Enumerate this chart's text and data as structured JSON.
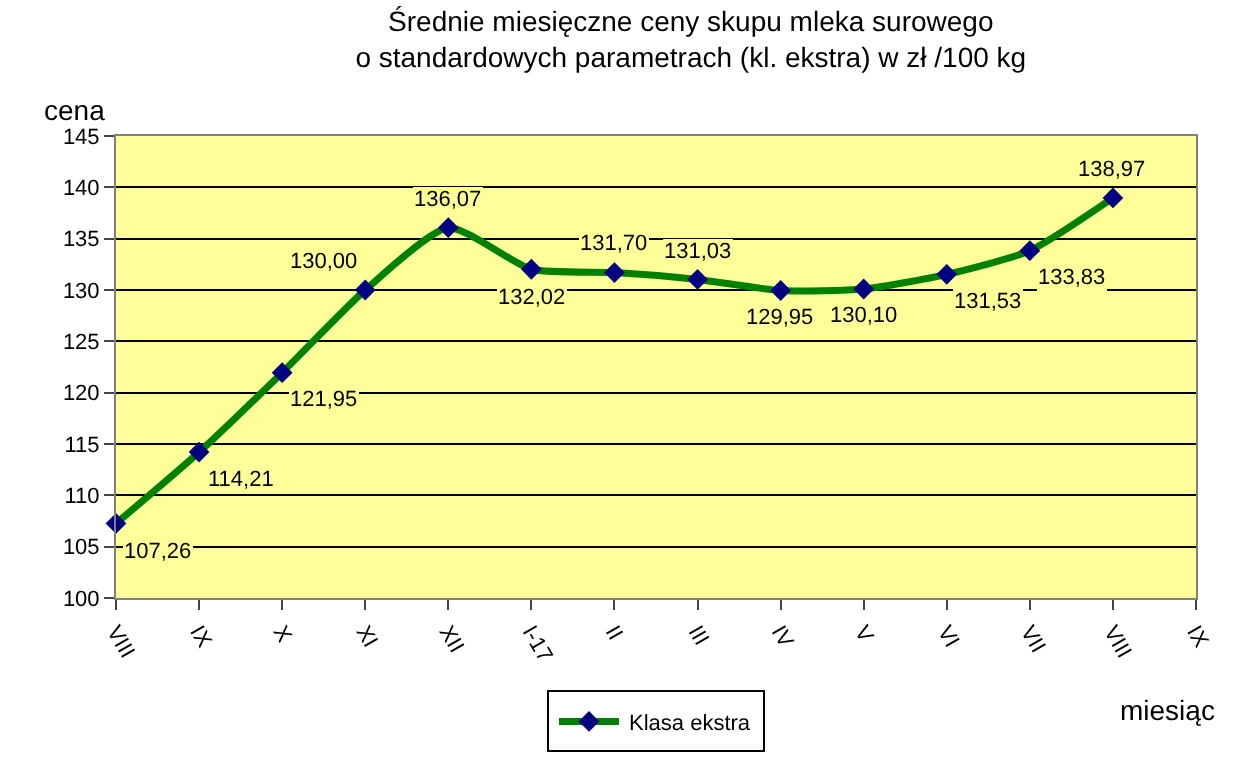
{
  "chart_data": {
    "type": "line",
    "title": "Średnie miesięczne ceny skupu mleka surowego\no standardowych parametrach (kl. ekstra) w zł /100 kg",
    "xlabel": "miesiąc",
    "ylabel": "cena",
    "categories": [
      "VIII",
      "IX",
      "X",
      "XI",
      "XII",
      "I-17",
      "II",
      "III",
      "IV",
      "V",
      "VI",
      "VII",
      "VIII",
      "IX"
    ],
    "series": [
      {
        "name": "Klasa ekstra",
        "color": "#008000",
        "values": [
          107.26,
          114.21,
          121.95,
          130.0,
          136.07,
          132.02,
          131.7,
          131.03,
          129.95,
          130.1,
          131.53,
          133.83,
          138.97,
          null
        ],
        "value_labels": [
          "107,26",
          "114,21",
          "121,95",
          "130,00",
          "136,07",
          "132,02",
          "131,70",
          "131,03",
          "129,95",
          "130,10",
          "131,53",
          "133,83",
          "138,97",
          null
        ]
      }
    ],
    "ylim": [
      100,
      145
    ],
    "yticks": [
      100,
      105,
      110,
      115,
      120,
      125,
      130,
      135,
      140,
      145
    ],
    "grid": "y",
    "legend": "bottom",
    "marker": "diamond",
    "line_style": "solid"
  }
}
